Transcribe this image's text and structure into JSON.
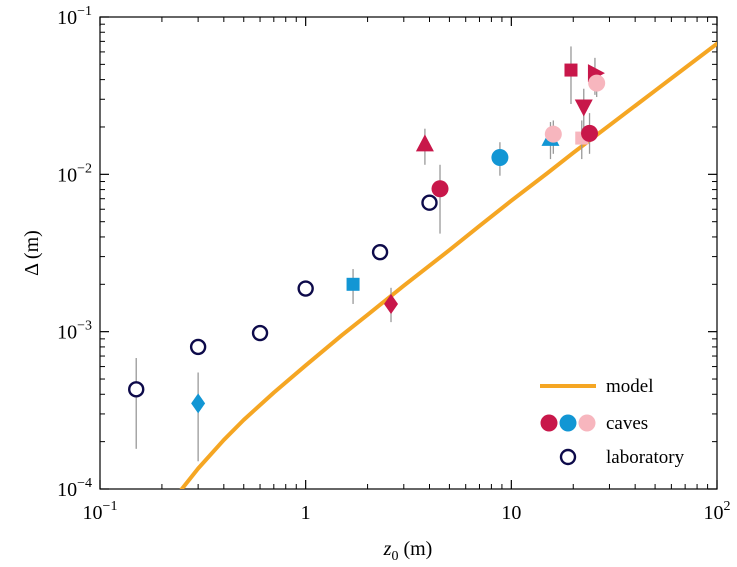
{
  "chart_data": {
    "type": "scatter",
    "x_scale": "log",
    "y_scale": "log",
    "xlim": [
      0.1,
      100
    ],
    "ylim": [
      0.0001,
      0.1
    ],
    "grid": false,
    "legend_position": "bottom-right",
    "xlabel": {
      "main": "z",
      "sub": "0",
      "unit": " (m)"
    },
    "ylabel": {
      "main": "Δ",
      "unit": " (m)"
    },
    "x_ticks": [
      {
        "value": 0.1,
        "base": "10",
        "exp": "−1"
      },
      {
        "value": 1,
        "base": "1",
        "exp": ""
      },
      {
        "value": 10,
        "base": "10",
        "exp": ""
      },
      {
        "value": 100,
        "base": "10",
        "exp": "2"
      }
    ],
    "y_ticks": [
      {
        "value": 0.0001,
        "base": "10",
        "exp": "−4"
      },
      {
        "value": 0.001,
        "base": "10",
        "exp": "−3"
      },
      {
        "value": 0.01,
        "base": "10",
        "exp": "−2"
      },
      {
        "value": 0.1,
        "base": "10",
        "exp": "−1"
      }
    ],
    "colors": {
      "model": "#f5a623",
      "crimson": "#c8174a",
      "blue": "#1296d4",
      "pink": "#f7b6be",
      "navy": "#0d0a4a",
      "errorbar": "#999999"
    },
    "series": [
      {
        "name": "model",
        "kind": "line",
        "color_key": "model",
        "x": [
          0.25,
          0.3,
          0.4,
          0.5,
          0.7,
          1,
          1.5,
          2,
          3,
          5,
          7,
          10,
          15,
          20,
          30,
          50,
          70,
          100
        ],
        "y": [
          0.0001,
          0.000135,
          0.000205,
          0.000275,
          0.00041,
          0.00061,
          0.00095,
          0.00128,
          0.00196,
          0.0033,
          0.0047,
          0.0068,
          0.0102,
          0.0137,
          0.0205,
          0.034,
          0.0475,
          0.0676
        ]
      },
      {
        "name": "caves",
        "kind": "markers",
        "points": [
          {
            "x": 0.3,
            "y": 0.00035,
            "ylo": 0.00015,
            "yhi": 0.00055,
            "marker": "diamond",
            "color_key": "blue"
          },
          {
            "x": 1.7,
            "y": 0.002,
            "ylo": 0.0015,
            "yhi": 0.0025,
            "marker": "square",
            "color_key": "blue"
          },
          {
            "x": 2.6,
            "y": 0.0015,
            "ylo": 0.00115,
            "yhi": 0.0019,
            "marker": "diamond",
            "color_key": "crimson"
          },
          {
            "x": 3.8,
            "y": 0.0155,
            "ylo": 0.0115,
            "yhi": 0.0195,
            "marker": "triangle-up",
            "color_key": "crimson"
          },
          {
            "x": 4.5,
            "y": 0.0081,
            "ylo": 0.0042,
            "yhi": 0.0115,
            "marker": "circle",
            "color_key": "crimson"
          },
          {
            "x": 8.8,
            "y": 0.0128,
            "ylo": 0.0098,
            "yhi": 0.016,
            "marker": "circle",
            "color_key": "blue"
          },
          {
            "x": 15.5,
            "y": 0.0168,
            "ylo": 0.0125,
            "yhi": 0.0215,
            "marker": "triangle-up",
            "color_key": "blue"
          },
          {
            "x": 16,
            "y": 0.018,
            "ylo": 0.0135,
            "yhi": 0.022,
            "marker": "circle",
            "color_key": "pink"
          },
          {
            "x": 19.5,
            "y": 0.046,
            "ylo": 0.028,
            "yhi": 0.065,
            "marker": "square",
            "color_key": "crimson"
          },
          {
            "x": 22,
            "y": 0.017,
            "ylo": 0.0125,
            "yhi": 0.022,
            "marker": "square",
            "color_key": "pink"
          },
          {
            "x": 22.5,
            "y": 0.027,
            "ylo": 0.0195,
            "yhi": 0.035,
            "marker": "triangle-down",
            "color_key": "crimson"
          },
          {
            "x": 24,
            "y": 0.0182,
            "ylo": 0.0135,
            "yhi": 0.0245,
            "marker": "circle",
            "color_key": "crimson"
          },
          {
            "x": 25.5,
            "y": 0.044,
            "ylo": 0.032,
            "yhi": 0.055,
            "marker": "triangle-right",
            "color_key": "crimson"
          },
          {
            "x": 26,
            "y": 0.038,
            "ylo": 0.031,
            "yhi": 0.046,
            "marker": "circle",
            "color_key": "pink"
          }
        ]
      },
      {
        "name": "laboratory",
        "kind": "markers",
        "points": [
          {
            "x": 0.15,
            "y": 0.00043,
            "ylo": 0.00018,
            "yhi": 0.00068,
            "marker": "open-circle",
            "color_key": "navy"
          },
          {
            "x": 0.3,
            "y": 0.0008,
            "ylo": null,
            "yhi": null,
            "marker": "open-circle",
            "color_key": "navy"
          },
          {
            "x": 0.6,
            "y": 0.00098,
            "ylo": null,
            "yhi": null,
            "marker": "open-circle",
            "color_key": "navy"
          },
          {
            "x": 1.0,
            "y": 0.00188,
            "ylo": null,
            "yhi": null,
            "marker": "open-circle",
            "color_key": "navy"
          },
          {
            "x": 2.3,
            "y": 0.0032,
            "ylo": null,
            "yhi": null,
            "marker": "open-circle",
            "color_key": "navy"
          },
          {
            "x": 4.0,
            "y": 0.0066,
            "ylo": null,
            "yhi": null,
            "marker": "open-circle",
            "color_key": "navy"
          }
        ]
      }
    ],
    "legend": [
      {
        "label": "model",
        "symbol": "line",
        "color_keys": [
          "model"
        ]
      },
      {
        "label": "caves",
        "symbol": "dots",
        "color_keys": [
          "crimson",
          "blue",
          "pink"
        ]
      },
      {
        "label": "laboratory",
        "symbol": "ring",
        "color_keys": [
          "navy"
        ]
      }
    ]
  }
}
